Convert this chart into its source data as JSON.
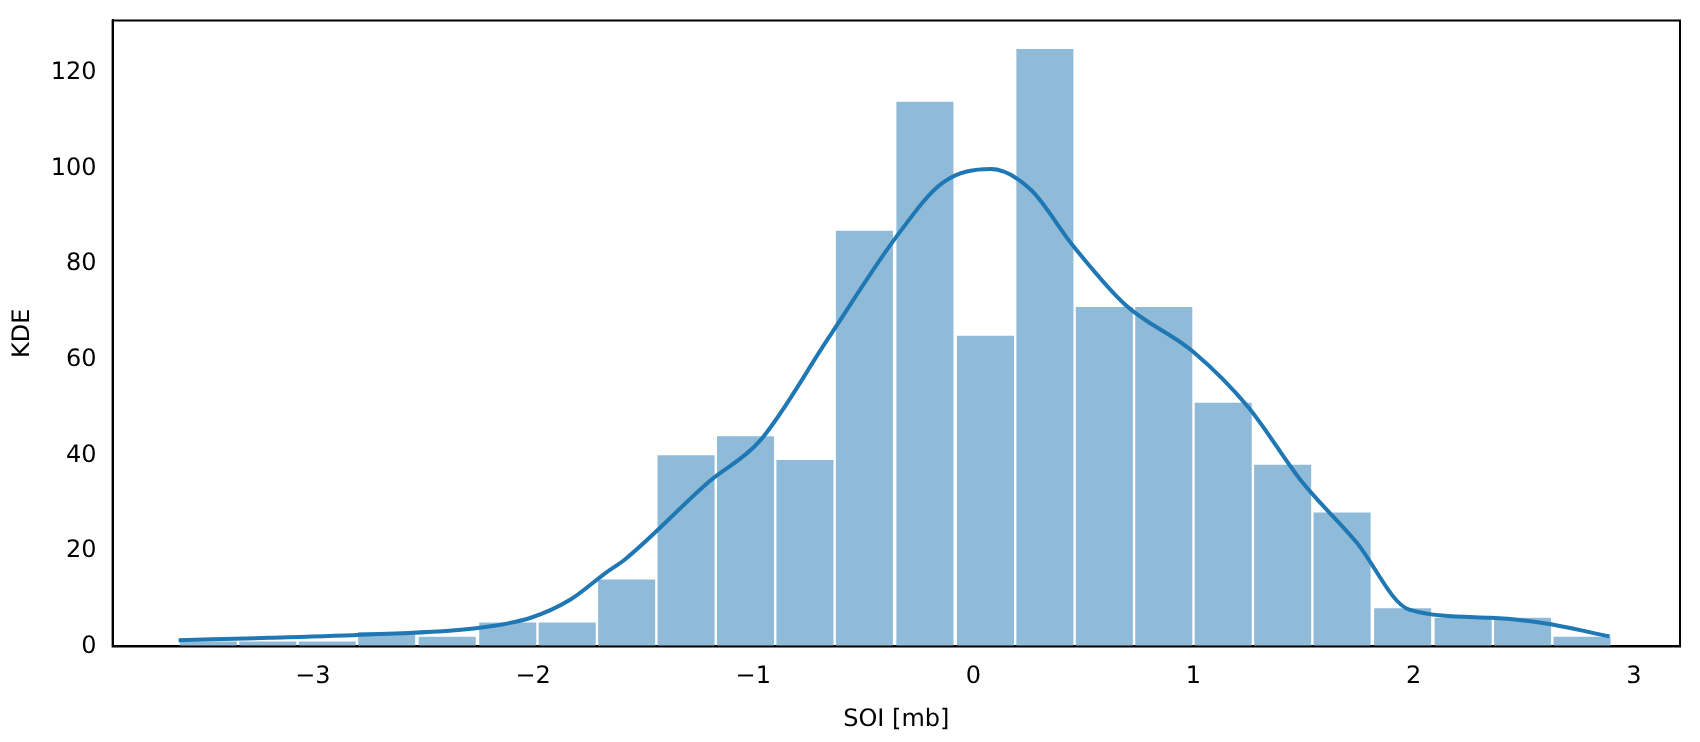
{
  "chart_data": {
    "type": "histogram",
    "xlabel": "SOI [mb]",
    "ylabel": "KDE",
    "xlim": [
      -3.91,
      3.21
    ],
    "xticks": [
      {
        "value": -3,
        "label": "−3"
      },
      {
        "value": -2,
        "label": "−2"
      },
      {
        "value": -1,
        "label": "−1"
      },
      0,
      1,
      2,
      3
    ],
    "ylim": [
      0,
      131
    ],
    "yticks": [
      0,
      20,
      40,
      60,
      80,
      100,
      120
    ],
    "grid": false,
    "series": [
      {
        "type": "histogram",
        "color": "#8fbbd9",
        "bins": [
          -3.61,
          -3.34,
          -3.07,
          -2.8,
          -2.53,
          -2.25,
          -1.98,
          -1.71,
          -1.44,
          -1.17,
          -0.9,
          -0.63,
          -0.36,
          -0.08,
          0.19,
          0.46,
          0.73,
          1.0,
          1.27,
          1.54,
          1.81,
          2.09,
          2.36,
          2.63,
          2.9
        ],
        "values": [
          1,
          1,
          1,
          3,
          2,
          5,
          5,
          14,
          40,
          44,
          39,
          87,
          114,
          65,
          125,
          71,
          71,
          51,
          38,
          28,
          8,
          6,
          6,
          2
        ]
      },
      {
        "type": "line",
        "color": "#1f77b4",
        "x": [
          -3.61,
          -3.2,
          -2.75,
          -2.26,
          -2.01,
          -1.83,
          -1.67,
          -1.58,
          -1.2,
          -0.97,
          -0.66,
          -0.35,
          -0.14,
          0.08,
          0.26,
          0.45,
          0.69,
          1.0,
          1.25,
          1.49,
          1.74,
          1.98,
          2.35,
          2.6,
          2.89
        ],
        "values": [
          1.3,
          1.8,
          2.5,
          3.8,
          6,
          9.8,
          15.4,
          18.3,
          34.5,
          43,
          64.4,
          85.7,
          97,
          99.9,
          95.6,
          84,
          71.5,
          61.6,
          50,
          34.6,
          21.8,
          7.7,
          6,
          4.8,
          2.1
        ]
      }
    ]
  }
}
